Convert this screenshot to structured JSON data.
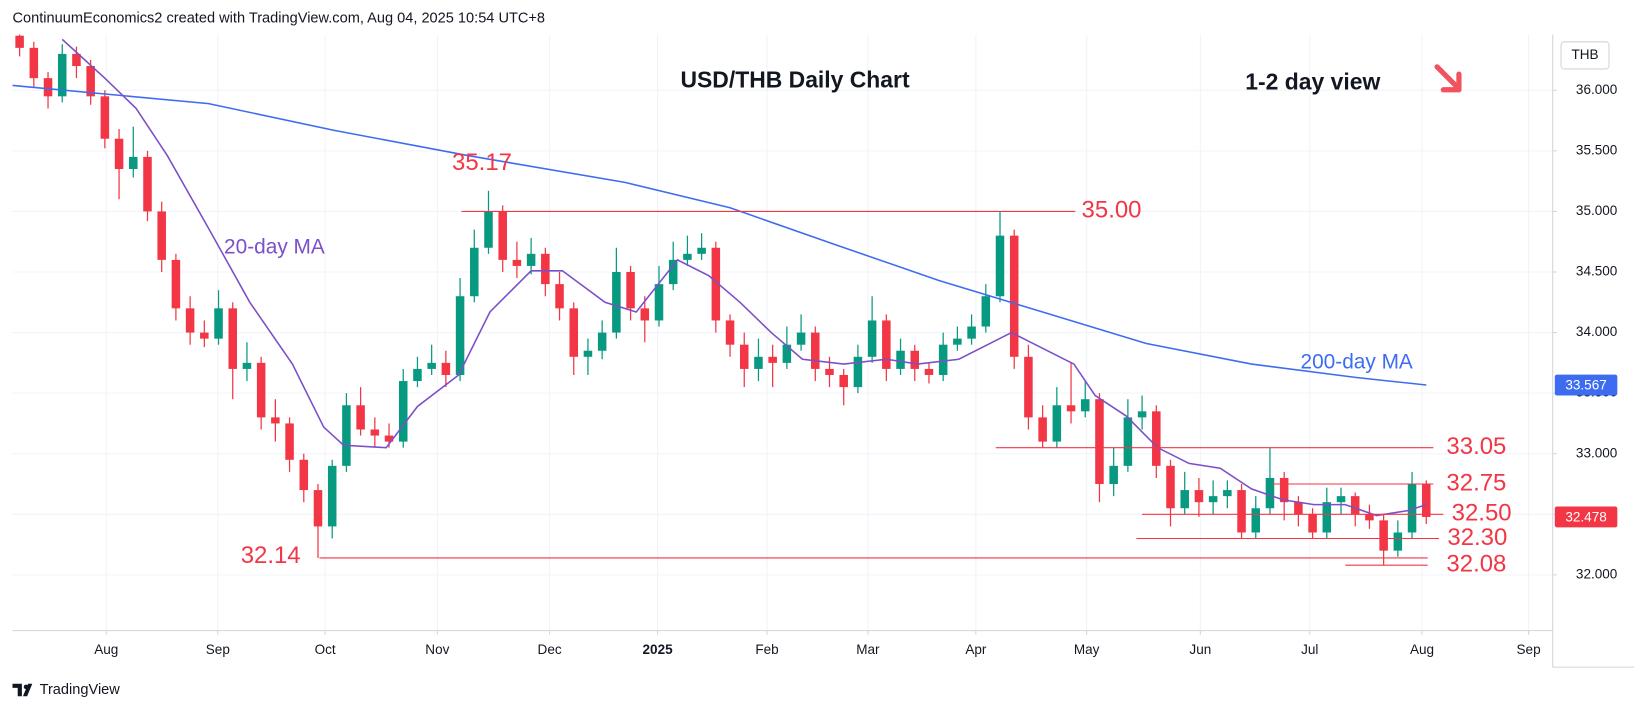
{
  "header": "ContinuumEconomics2 created with TradingView.com, Aug 04, 2025 10:54 UTC+8",
  "footer": "TradingView",
  "chart_data": {
    "type": "candlestick",
    "title": "USD/THB Daily Chart",
    "subtitle": "1-2 day view",
    "currency": "THB",
    "up_color": "#089981",
    "down_color": "#f23645",
    "grid": true,
    "xlim": [
      -0.5,
      107.9
    ],
    "ylim": [
      31.54,
      36.46
    ],
    "xticks": [
      {
        "value": 6.1,
        "label": "Aug"
      },
      {
        "value": 13.95,
        "label": "Sep"
      },
      {
        "value": 21.5,
        "label": "Oct"
      },
      {
        "value": 29.4,
        "label": "Nov"
      },
      {
        "value": 37.3,
        "label": "Dec"
      },
      {
        "value": 44.9,
        "label": "2025"
      },
      {
        "value": 52.6,
        "label": "Feb"
      },
      {
        "value": 59.7,
        "label": "Mar"
      },
      {
        "value": 67.3,
        "label": "Apr"
      },
      {
        "value": 75.1,
        "label": "May"
      },
      {
        "value": 83.1,
        "label": "Jun"
      },
      {
        "value": 90.8,
        "label": "Jul"
      },
      {
        "value": 98.7,
        "label": "Aug"
      },
      {
        "value": 106.2,
        "label": "Sep"
      }
    ],
    "yticks": [
      {
        "value": 32,
        "label": "32.000"
      },
      {
        "value": 32.5,
        "label": "32.500"
      },
      {
        "value": 33,
        "label": "33.000"
      },
      {
        "value": 33.5,
        "label": "33.500"
      },
      {
        "value": 34,
        "label": "34.000"
      },
      {
        "value": 34.5,
        "label": "34.500"
      },
      {
        "value": 35,
        "label": "35.000"
      },
      {
        "value": 35.5,
        "label": "35.500"
      },
      {
        "value": 36,
        "label": "36.000"
      }
    ],
    "open": [
      36.45,
      36.35,
      36.1,
      35.95,
      36.3,
      36.2,
      35.95,
      35.6,
      35.35,
      35.45,
      35.0,
      34.6,
      34.2,
      34.0,
      33.95,
      34.2,
      33.7,
      33.75,
      33.3,
      33.25,
      32.95,
      32.7,
      32.4,
      32.9,
      33.4,
      33.2,
      33.15,
      33.1,
      33.6,
      33.7,
      33.75,
      33.65,
      34.3,
      34.7,
      35.0,
      34.6,
      34.55,
      34.65,
      34.4,
      34.2,
      33.8,
      33.85,
      34.0,
      34.5,
      34.2,
      34.1,
      34.4,
      34.6,
      34.65,
      34.7,
      34.1,
      33.9,
      33.7,
      33.8,
      33.75,
      33.9,
      34.0,
      33.7,
      33.65,
      33.55,
      33.8,
      34.1,
      33.7,
      33.85,
      33.7,
      33.65,
      33.9,
      33.95,
      34.05,
      34.3,
      34.8,
      33.8,
      33.3,
      33.1,
      33.4,
      33.35,
      33.45,
      32.75,
      32.9,
      33.3,
      33.35,
      32.9,
      32.55,
      32.7,
      32.6,
      32.65,
      32.7,
      32.35,
      32.55,
      32.8,
      32.6,
      32.5,
      32.35,
      32.6,
      32.65,
      32.5,
      32.45,
      32.2,
      32.35,
      32.75
    ],
    "high": [
      36.5,
      36.4,
      36.15,
      36.38,
      36.36,
      36.25,
      36.0,
      35.68,
      35.7,
      35.5,
      35.08,
      34.65,
      34.3,
      34.1,
      34.35,
      34.25,
      33.92,
      33.8,
      33.45,
      33.3,
      33.0,
      32.75,
      32.95,
      33.5,
      33.55,
      33.3,
      33.25,
      33.7,
      33.8,
      33.9,
      33.85,
      34.45,
      34.85,
      35.17,
      35.05,
      34.75,
      34.78,
      34.7,
      34.5,
      34.25,
      33.95,
      34.1,
      34.7,
      34.55,
      34.3,
      34.55,
      34.75,
      34.8,
      34.82,
      34.75,
      34.15,
      34.0,
      33.95,
      33.9,
      34.05,
      34.15,
      34.05,
      33.8,
      33.7,
      33.9,
      34.3,
      34.15,
      33.95,
      33.9,
      33.75,
      34.0,
      34.05,
      34.15,
      34.4,
      35.0,
      34.85,
      33.9,
      33.4,
      33.55,
      33.75,
      33.6,
      33.5,
      33.05,
      33.45,
      33.48,
      33.4,
      32.95,
      32.85,
      32.8,
      32.78,
      32.78,
      32.75,
      32.65,
      33.05,
      32.85,
      32.65,
      32.55,
      32.72,
      32.72,
      32.68,
      32.58,
      32.5,
      32.45,
      32.85,
      32.78
    ],
    "low": [
      36.28,
      36.02,
      35.85,
      35.9,
      36.1,
      35.88,
      35.52,
      35.1,
      35.28,
      34.92,
      34.5,
      34.1,
      33.9,
      33.88,
      33.9,
      33.45,
      33.6,
      33.2,
      33.1,
      32.85,
      32.6,
      32.14,
      32.3,
      32.85,
      33.15,
      33.05,
      33.05,
      33.05,
      33.55,
      33.65,
      33.55,
      33.6,
      34.25,
      34.65,
      34.5,
      34.45,
      34.48,
      34.3,
      34.1,
      33.65,
      33.65,
      33.78,
      33.95,
      34.1,
      33.92,
      34.05,
      34.35,
      34.55,
      34.6,
      34.0,
      33.8,
      33.55,
      33.6,
      33.55,
      33.7,
      33.85,
      33.6,
      33.55,
      33.4,
      33.5,
      33.75,
      33.6,
      33.65,
      33.6,
      33.58,
      33.6,
      33.85,
      33.9,
      34.0,
      34.25,
      33.7,
      33.2,
      33.05,
      33.05,
      33.25,
      33.3,
      32.6,
      32.65,
      32.85,
      33.2,
      32.8,
      32.4,
      32.5,
      32.48,
      32.5,
      32.55,
      32.3,
      32.3,
      32.5,
      32.45,
      32.4,
      32.3,
      32.3,
      32.5,
      32.4,
      32.38,
      32.08,
      32.15,
      32.3,
      32.42
    ],
    "close": [
      36.35,
      36.1,
      35.95,
      36.3,
      36.2,
      35.95,
      35.6,
      35.35,
      35.45,
      35.0,
      34.6,
      34.2,
      34.0,
      33.95,
      34.2,
      33.7,
      33.75,
      33.3,
      33.25,
      32.95,
      32.7,
      32.4,
      32.9,
      33.4,
      33.2,
      33.15,
      33.1,
      33.6,
      33.7,
      33.75,
      33.65,
      34.3,
      34.7,
      35.0,
      34.6,
      34.55,
      34.65,
      34.4,
      34.2,
      33.8,
      33.85,
      34.0,
      34.5,
      34.2,
      34.1,
      34.4,
      34.6,
      34.65,
      34.7,
      34.1,
      33.9,
      33.7,
      33.8,
      33.75,
      33.9,
      34.0,
      33.7,
      33.65,
      33.55,
      33.8,
      34.1,
      33.7,
      33.85,
      33.7,
      33.65,
      33.9,
      33.95,
      34.05,
      34.3,
      34.8,
      33.8,
      33.3,
      33.1,
      33.4,
      33.35,
      33.45,
      32.75,
      32.9,
      33.3,
      33.35,
      32.9,
      32.55,
      32.7,
      32.6,
      32.65,
      32.7,
      32.35,
      32.55,
      32.8,
      32.6,
      32.5,
      32.35,
      32.6,
      32.65,
      32.5,
      32.45,
      32.2,
      32.35,
      32.75,
      32.478
    ],
    "lines": [
      {
        "name": "200-day MA",
        "color": "#3d6cf0",
        "x": [
          -0.5,
          13.3,
          22.1,
          31.6,
          42.6,
          50.0,
          57.3,
          64.7,
          72.0,
          79.3,
          86.7,
          94.0,
          99.0
        ],
        "values": [
          36.04,
          35.89,
          35.67,
          35.46,
          35.24,
          35.03,
          34.73,
          34.43,
          34.17,
          33.91,
          33.74,
          33.63,
          33.567
        ]
      },
      {
        "name": "20-day MA",
        "color": "#7b4fc9",
        "x": [
          3.0,
          6.0,
          8.2,
          10.4,
          13.3,
          16.2,
          19.2,
          21.4,
          22.8,
          25.8,
          28.0,
          30.9,
          33.1,
          36.0,
          38.2,
          41.2,
          43.4,
          46.3,
          48.5,
          50.7,
          52.9,
          55.1,
          58.0,
          61.0,
          63.2,
          66.1,
          68.3,
          69.8,
          72.0,
          74.2,
          75.7,
          77.9,
          80.1,
          82.3,
          84.5,
          86.7,
          88.9,
          91.1,
          93.3,
          95.5,
          97.7,
          99.0
        ],
        "values": [
          36.42,
          36.1,
          35.85,
          35.46,
          34.86,
          34.25,
          33.74,
          33.22,
          33.07,
          33.05,
          33.39,
          33.65,
          34.17,
          34.51,
          34.51,
          34.25,
          34.17,
          34.6,
          34.47,
          34.25,
          34.0,
          33.78,
          33.74,
          33.78,
          33.74,
          33.78,
          33.91,
          34.0,
          33.87,
          33.74,
          33.48,
          33.31,
          33.05,
          32.92,
          32.88,
          32.71,
          32.62,
          32.58,
          32.58,
          32.49,
          32.53,
          32.58
        ]
      }
    ],
    "levels": [
      {
        "value": 35.17,
        "label": "35.17"
      },
      {
        "value": 35.0,
        "label": "35.00",
        "from": 31.1,
        "to": 74.3
      },
      {
        "value": 32.14,
        "label": "32.14",
        "from": 21.1,
        "to": 99.1
      },
      {
        "value": 33.05,
        "label": "33.05",
        "from": 68.7,
        "to": 99.5
      },
      {
        "value": 32.75,
        "label": "32.75",
        "from": 88.1,
        "to": 99.5
      },
      {
        "value": 32.5,
        "label": "32.50",
        "from": 79.0,
        "to": 100.2
      },
      {
        "value": 32.3,
        "label": "32.30",
        "from": 78.6,
        "to": 99.9
      },
      {
        "value": 32.08,
        "label": "32.08",
        "from": 93.3,
        "to": 99.1
      }
    ],
    "level_color": "#f23645"
  }
}
